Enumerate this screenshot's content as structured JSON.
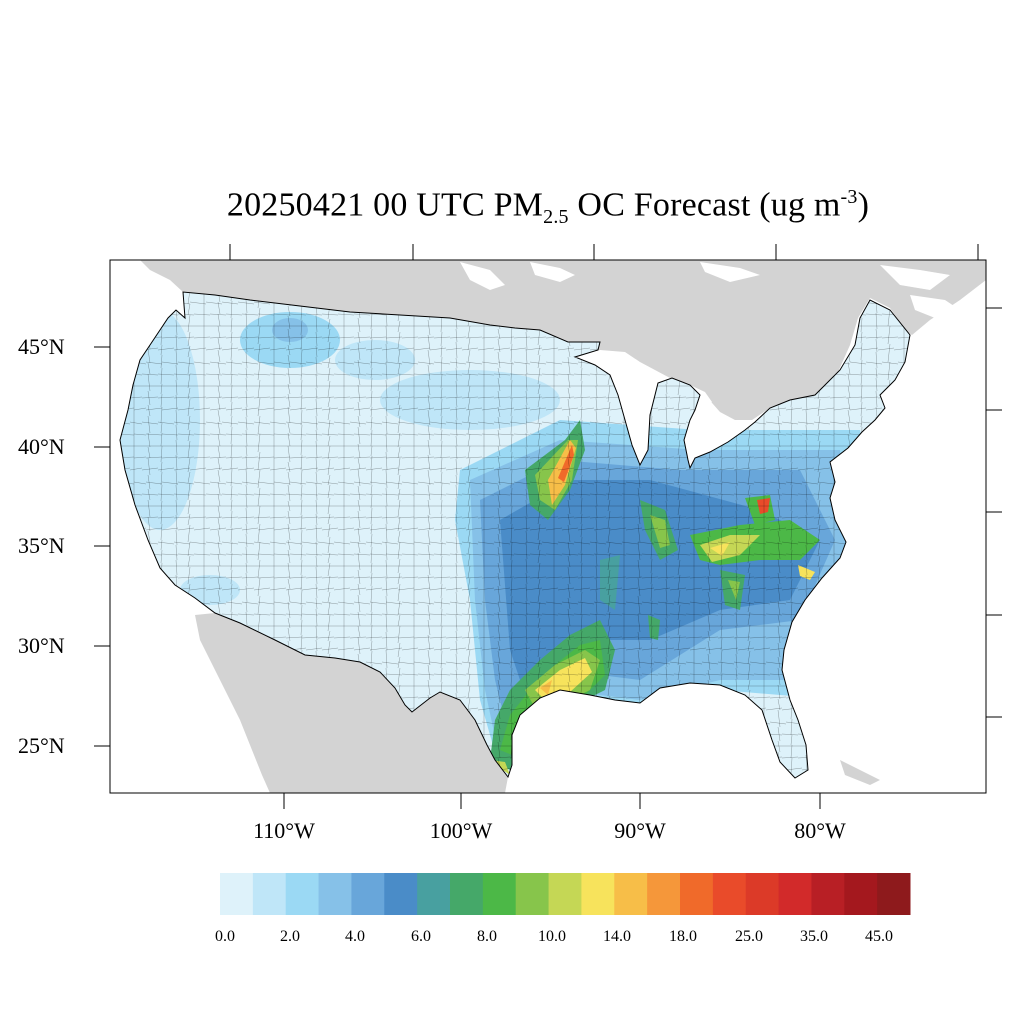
{
  "title": {
    "prefix": "20250421 00 UTC PM",
    "subscript": "2.5",
    "middle": " OC Forecast (ug m",
    "superscript": "-3",
    "suffix": ")"
  },
  "map": {
    "lat_labels": [
      "45°N",
      "40°N",
      "35°N",
      "30°N",
      "25°N"
    ],
    "lon_labels": [
      "110°W",
      "100°W",
      "90°W",
      "80°W"
    ],
    "land_color": "#d3d3d3",
    "ocean_color": "#ffffff",
    "outline_color": "#000000"
  },
  "colorbar": {
    "colors": [
      "#def2fa",
      "#bfe6f8",
      "#9bd9f4",
      "#86c1e8",
      "#68a6da",
      "#4a8cc8",
      "#48a0a0",
      "#45a869",
      "#4cb847",
      "#87c54b",
      "#c5d755",
      "#f7e35c",
      "#f7be48",
      "#f5973a",
      "#f06a2a",
      "#e94b2a",
      "#dc3a28",
      "#d22a2a",
      "#b81f25",
      "#a4181e",
      "#8e1a1c"
    ],
    "labels": [
      "0.0",
      "2.0",
      "4.0",
      "6.0",
      "8.0",
      "10.0",
      "14.0",
      "18.0",
      "25.0",
      "35.0",
      "45.0"
    ]
  }
}
